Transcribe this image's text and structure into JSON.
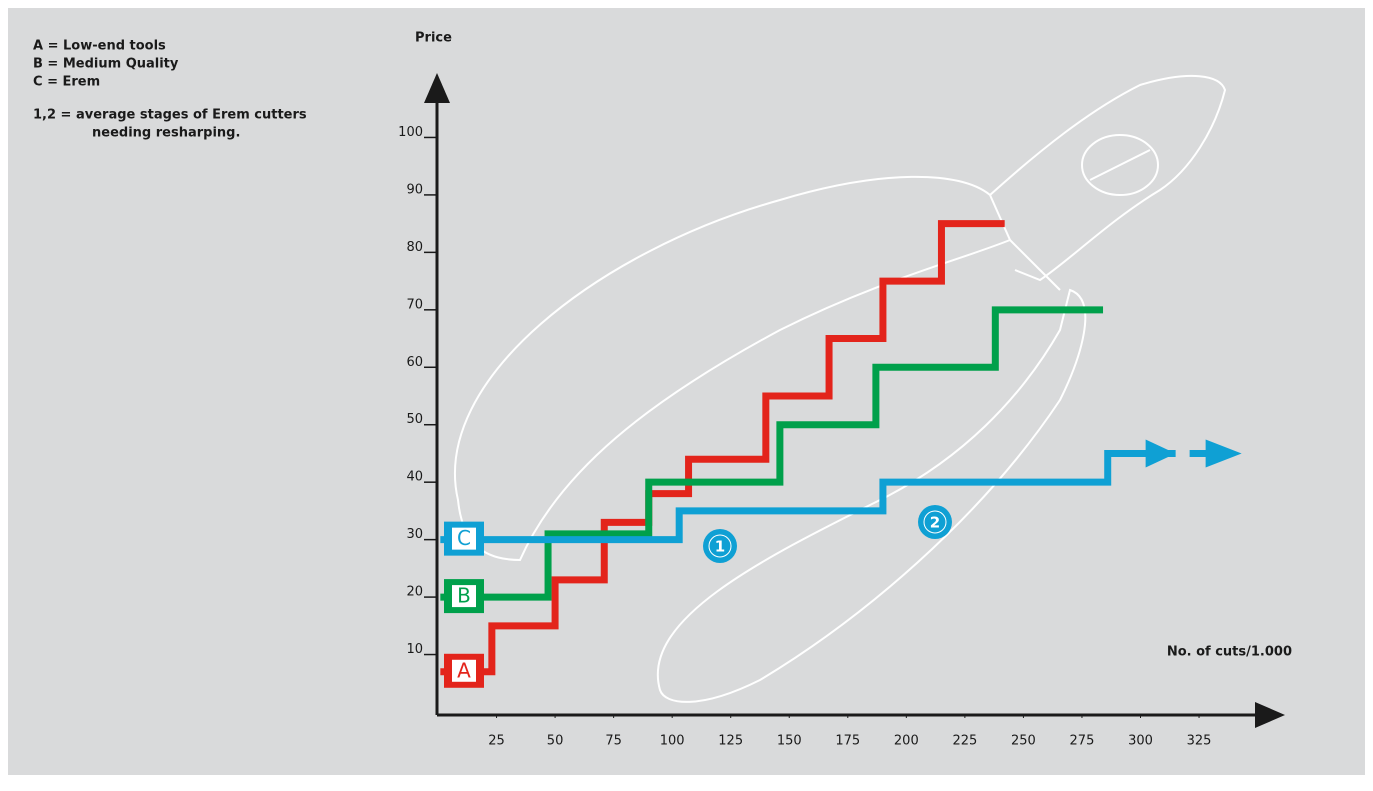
{
  "chart_data": {
    "type": "step",
    "title": "Price",
    "x_label": "No. of cuts/1.000",
    "notes": [
      "A = Low-end tools",
      "B = Medium Quality",
      "C = Erem",
      "1,2 = average stages of Erem cutters",
      "needing resharping."
    ],
    "annotations": [
      "1",
      "2"
    ],
    "xlim": [
      0,
      360
    ],
    "ylim": [
      0,
      110
    ],
    "xticks": [
      25,
      50,
      75,
      100,
      125,
      150,
      175,
      200,
      225,
      250,
      275,
      300,
      325
    ],
    "yticks": [
      10,
      20,
      30,
      40,
      50,
      60,
      70,
      80,
      90,
      100
    ],
    "series": [
      {
        "name": "A",
        "color": "#e3241b",
        "x": [
          1,
          23,
          50,
          71,
          90,
          107,
          140,
          167,
          190,
          215,
          242
        ],
        "values": [
          7,
          15,
          23,
          33,
          38,
          44,
          55,
          65,
          75,
          85,
          85
        ]
      },
      {
        "name": "B",
        "color": "#00a04b",
        "x": [
          1,
          47,
          90,
          146,
          187,
          238,
          284
        ],
        "values": [
          20,
          31,
          40,
          50,
          60,
          70,
          70
        ]
      },
      {
        "name": "C",
        "color": "#0fa0d4",
        "x": [
          1,
          103,
          190,
          286,
          315
        ],
        "values": [
          30,
          35,
          40,
          45,
          45
        ]
      }
    ]
  }
}
